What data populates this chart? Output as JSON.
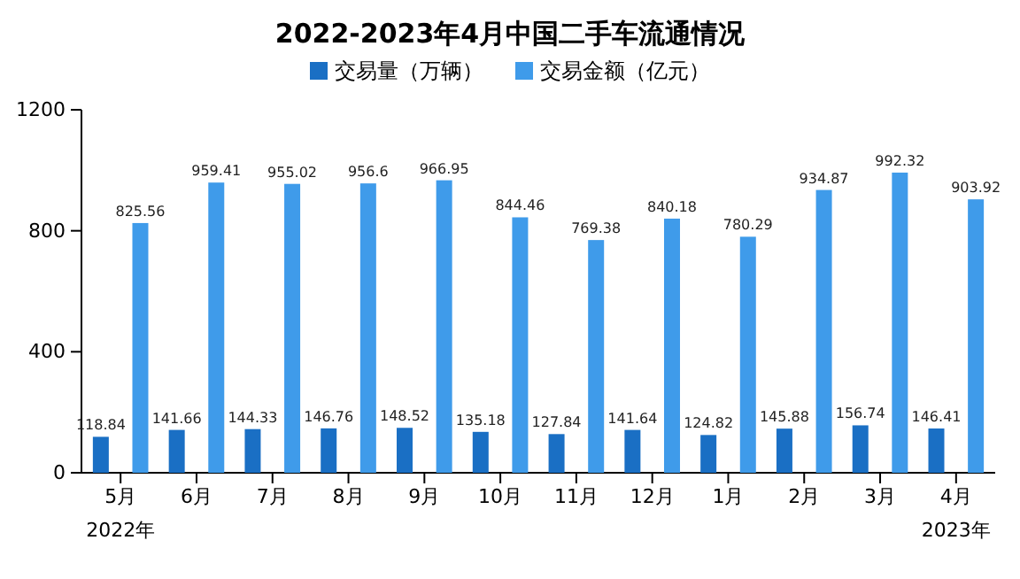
{
  "chart_data": {
    "type": "bar",
    "title": "2022-2023年4月中国二手车流通情况",
    "categories": [
      "5月",
      "6月",
      "7月",
      "8月",
      "9月",
      "10月",
      "11月",
      "12月",
      "1月",
      "2月",
      "3月",
      "4月"
    ],
    "series": [
      {
        "name": "交易量（万辆）",
        "color": "#1a6fc4",
        "values": [
          118.84,
          141.66,
          144.33,
          146.76,
          148.52,
          135.18,
          127.84,
          141.64,
          124.82,
          145.88,
          156.74,
          146.41
        ]
      },
      {
        "name": "交易金额（亿元）",
        "color": "#3f9bea",
        "values": [
          825.56,
          959.41,
          955.02,
          956.6,
          966.95,
          844.46,
          769.38,
          840.18,
          780.29,
          934.87,
          992.32,
          903.92
        ]
      }
    ],
    "ylim": [
      0,
      1200
    ],
    "yticks": [
      0,
      400,
      800,
      1200
    ],
    "data_labels": true,
    "legend": "top",
    "annotations": [
      "2022年",
      "2023年"
    ]
  }
}
